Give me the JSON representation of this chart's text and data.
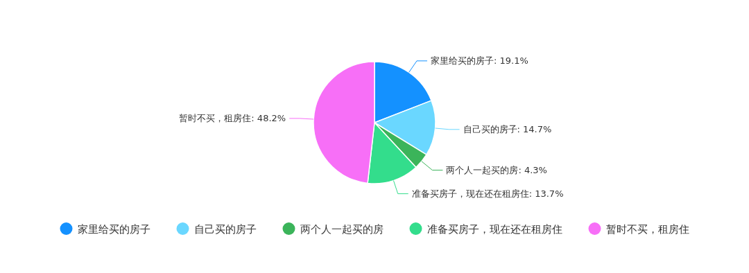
{
  "chart_data": {
    "type": "pie",
    "categories": [
      "家里给买的房子",
      "自己买的房子",
      "两个人一起买的房",
      "准备买房子，现在还在租房住",
      "暂时不买，租房住"
    ],
    "values": [
      19.1,
      14.7,
      4.3,
      13.7,
      48.2
    ],
    "colors": [
      "#1491ff",
      "#6ad7ff",
      "#3bb45a",
      "#33dd8c",
      "#f76ff7"
    ],
    "value_labels": [
      "家里给买的房子: 19.1%",
      "自己买的房子: 14.7%",
      "两个人一起买的房: 4.3%",
      "准备买房子，现在还在租房住: 13.7%",
      "暂时不买，租房住: 48.2%"
    ],
    "legend": "bottom"
  }
}
